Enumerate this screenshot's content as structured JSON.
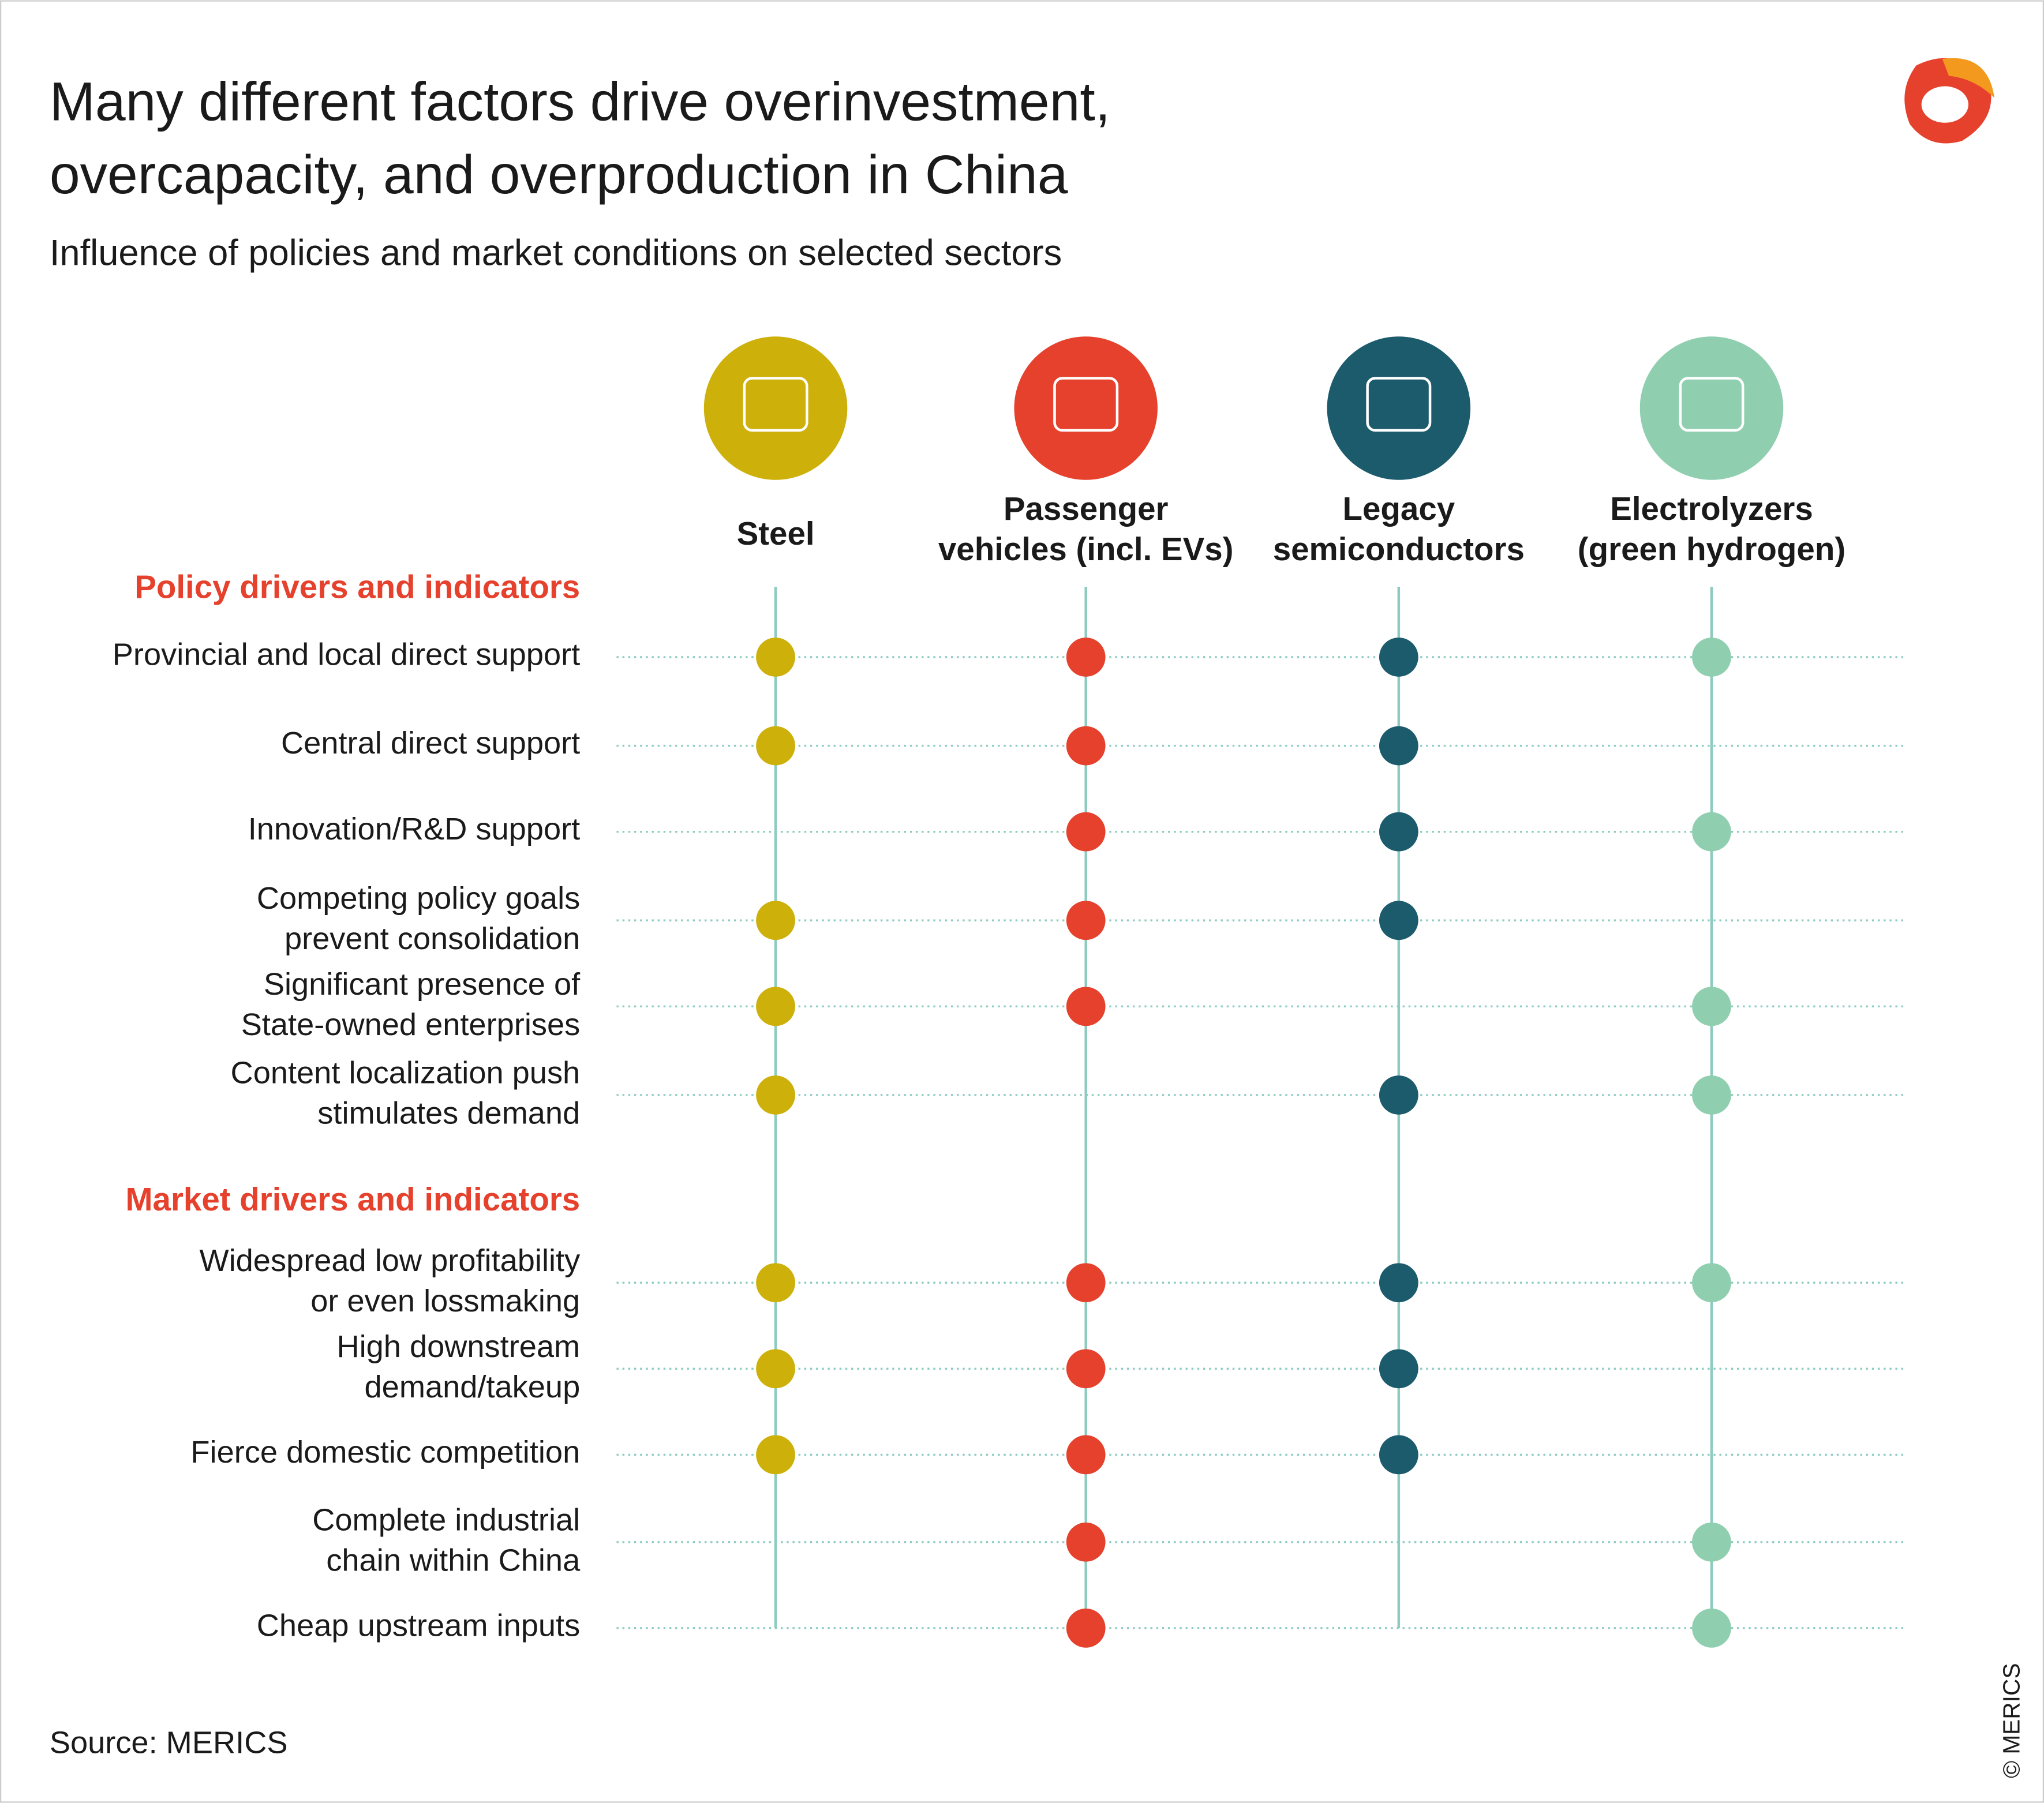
{
  "title": [
    "Many different factors drive overinvestment,",
    "overcapacity, and overproduction in China"
  ],
  "subtitle": "Influence of policies and market conditions on selected sectors",
  "columns": [
    {
      "label": [
        "Steel"
      ],
      "color": "#cdb00a"
    },
    {
      "label": [
        "Passenger",
        "vehicles (incl. EVs)"
      ],
      "color": "#e5412d"
    },
    {
      "label": [
        "Legacy",
        "semiconductors"
      ],
      "color": "#1c5b6b"
    },
    {
      "label": [
        "Electrolyzers",
        "(green hydrogen)"
      ],
      "color": "#8fcfb0"
    }
  ],
  "sections": [
    {
      "label": "Policy drivers and indicators",
      "rows": [
        {
          "label": [
            "Provincial and local direct support"
          ],
          "marks": [
            true,
            true,
            true,
            true
          ]
        },
        {
          "label": [
            "Central direct support"
          ],
          "marks": [
            true,
            true,
            true,
            false
          ]
        },
        {
          "label": [
            "Innovation/R&D support"
          ],
          "marks": [
            false,
            true,
            true,
            true
          ]
        },
        {
          "label": [
            "Competing policy goals",
            "prevent consolidation"
          ],
          "marks": [
            true,
            true,
            true,
            false
          ]
        },
        {
          "label": [
            "Significant presence of",
            "State-owned enterprises"
          ],
          "marks": [
            true,
            true,
            false,
            true
          ]
        },
        {
          "label": [
            "Content localization push",
            "stimulates demand"
          ],
          "marks": [
            true,
            false,
            true,
            true
          ]
        }
      ]
    },
    {
      "label": "Market drivers and indicators",
      "rows": [
        {
          "label": [
            "Widespread low profitability",
            "or even lossmaking"
          ],
          "marks": [
            true,
            true,
            true,
            true
          ]
        },
        {
          "label": [
            "High downstream",
            "demand/takeup"
          ],
          "marks": [
            true,
            true,
            true,
            false
          ]
        },
        {
          "label": [
            "Fierce domestic competition"
          ],
          "marks": [
            true,
            true,
            true,
            false
          ]
        },
        {
          "label": [
            "Complete industrial",
            "chain within China"
          ],
          "marks": [
            false,
            true,
            false,
            true
          ]
        },
        {
          "label": [
            "Cheap upstream inputs"
          ],
          "marks": [
            false,
            true,
            false,
            true
          ]
        }
      ]
    }
  ],
  "source": "Source: MERICS",
  "copyright": "© MERICS"
}
